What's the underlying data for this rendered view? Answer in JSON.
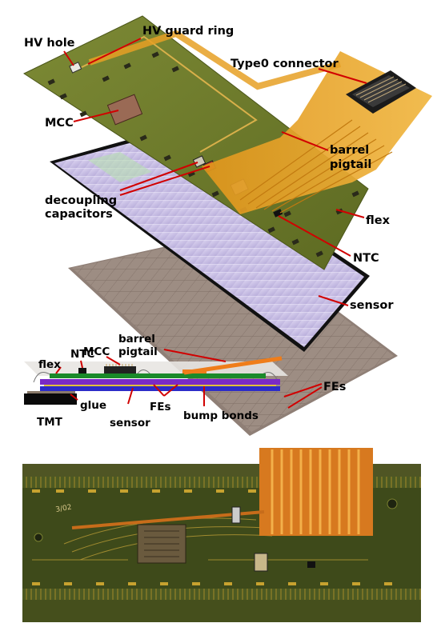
{
  "labels": {
    "hv_hole": "HV hole",
    "hv_guard_ring": "HV guard ring",
    "type0_connector": "Type0 connector",
    "mcc": "MCC",
    "barrel_pigtail_l1": "barrel",
    "barrel_pigtail_l2": "pigtail",
    "decoupling_l1": "decoupling",
    "decoupling_l2": "capacitors",
    "flex": "flex",
    "ntc": "NTC",
    "sensor": "sensor",
    "fes": "FEs"
  },
  "cross_section": {
    "ntc": "NTC",
    "flex": "flex",
    "mcc": "MCC",
    "barrel_l1": "barrel",
    "barrel_l2": "pigtail",
    "glue": "glue",
    "tmt": "TMT",
    "sensor": "sensor",
    "fes": "FEs",
    "bump_bonds": "bump bonds"
  },
  "photo": {
    "marking": "3/02"
  },
  "colors": {
    "leader": "#d10000",
    "pcb_green": "#6f7a2e",
    "kapton_orange": "#e6a024",
    "sensor_lilac": "#c9bfe6",
    "fe_gray": "#9a8a80"
  }
}
